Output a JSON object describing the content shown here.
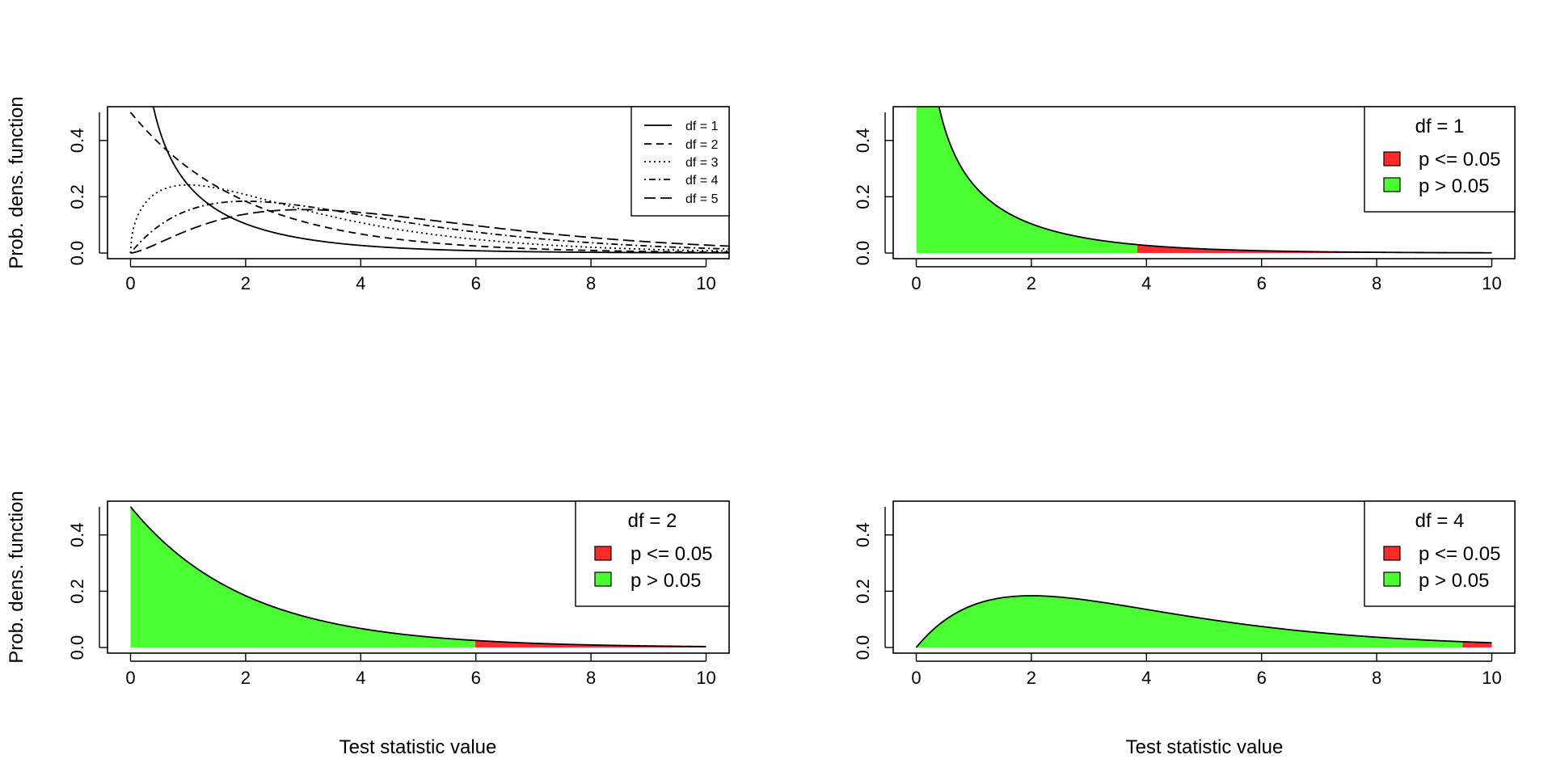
{
  "chart_data": [
    {
      "type": "line",
      "title": "",
      "xlabel": "",
      "ylabel": "Prob. dens. function",
      "xlim": [
        0,
        10
      ],
      "ylim": [
        0,
        0.5
      ],
      "x_ticks": [
        "0",
        "2",
        "4",
        "6",
        "8",
        "10"
      ],
      "y_ticks": [
        "0.0",
        "0.2",
        "0.4"
      ],
      "legend_position": "top-right",
      "legend_box": "fill",
      "series": [
        {
          "name": "df = 1",
          "df": 1,
          "linestyle": "solid"
        },
        {
          "name": "df = 2",
          "df": 2,
          "linestyle": "dashed"
        },
        {
          "name": "df = 3",
          "df": 3,
          "linestyle": "dotted"
        },
        {
          "name": "df = 4",
          "df": 4,
          "linestyle": "dotdash"
        },
        {
          "name": "df = 5",
          "df": 5,
          "linestyle": "longdash"
        }
      ]
    },
    {
      "type": "area",
      "title": "",
      "xlabel": "",
      "ylabel": "",
      "xlim": [
        0,
        10
      ],
      "ylim": [
        0,
        0.5
      ],
      "x_ticks": [
        "0",
        "2",
        "4",
        "6",
        "8",
        "10"
      ],
      "y_ticks": [
        "0.0",
        "0.2",
        "0.4"
      ],
      "df": 1,
      "critical_value": 3.84,
      "legend_title": "df = 1",
      "legend_position": "top-right",
      "regions": [
        {
          "name": "p <= 0.05",
          "color": "#ff2a2a"
        },
        {
          "name": "p > 0.05",
          "color": "#4cff33"
        }
      ]
    },
    {
      "type": "area",
      "title": "",
      "xlabel": "Test statistic value",
      "ylabel": "Prob. dens. function",
      "xlim": [
        0,
        10
      ],
      "ylim": [
        0,
        0.5
      ],
      "x_ticks": [
        "0",
        "2",
        "4",
        "6",
        "8",
        "10"
      ],
      "y_ticks": [
        "0.0",
        "0.2",
        "0.4"
      ],
      "df": 2,
      "critical_value": 5.99,
      "legend_title": "df = 2",
      "legend_position": "top-right",
      "regions": [
        {
          "name": "p <= 0.05",
          "color": "#ff2a2a"
        },
        {
          "name": "p > 0.05",
          "color": "#4cff33"
        }
      ]
    },
    {
      "type": "area",
      "title": "",
      "xlabel": "Test statistic value",
      "ylabel": "",
      "xlim": [
        0,
        10
      ],
      "ylim": [
        0,
        0.5
      ],
      "x_ticks": [
        "0",
        "2",
        "4",
        "6",
        "8",
        "10"
      ],
      "y_ticks": [
        "0.0",
        "0.2",
        "0.4"
      ],
      "df": 4,
      "critical_value": 9.49,
      "legend_title": "df = 4",
      "legend_position": "top-right",
      "regions": [
        {
          "name": "p <= 0.05",
          "color": "#ff2a2a"
        },
        {
          "name": "p > 0.05",
          "color": "#4cff33"
        }
      ]
    }
  ]
}
